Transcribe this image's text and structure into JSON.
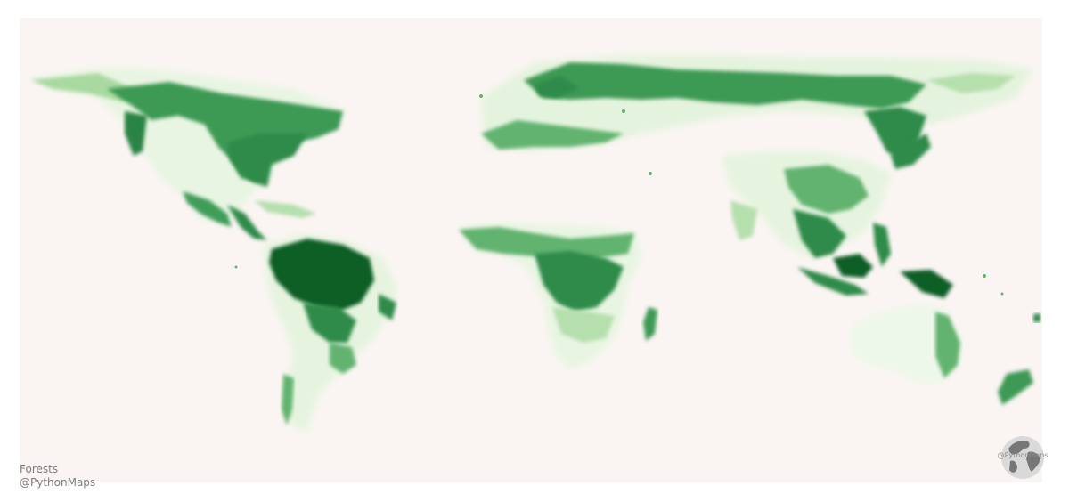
{
  "map": {
    "background_color": "#faf5f2",
    "palette": {
      "very_light": "#eaf6e4",
      "light": "#b6dfae",
      "medium": "#62b36f",
      "dark": "#2e8b49",
      "darkest": "#0b5e25"
    }
  },
  "caption": {
    "title": "Forests",
    "handle": "@PythonMaps"
  },
  "logo": {
    "icon": "globe-icon",
    "text": "@PythonMaps",
    "color": "#8c8c8c"
  }
}
